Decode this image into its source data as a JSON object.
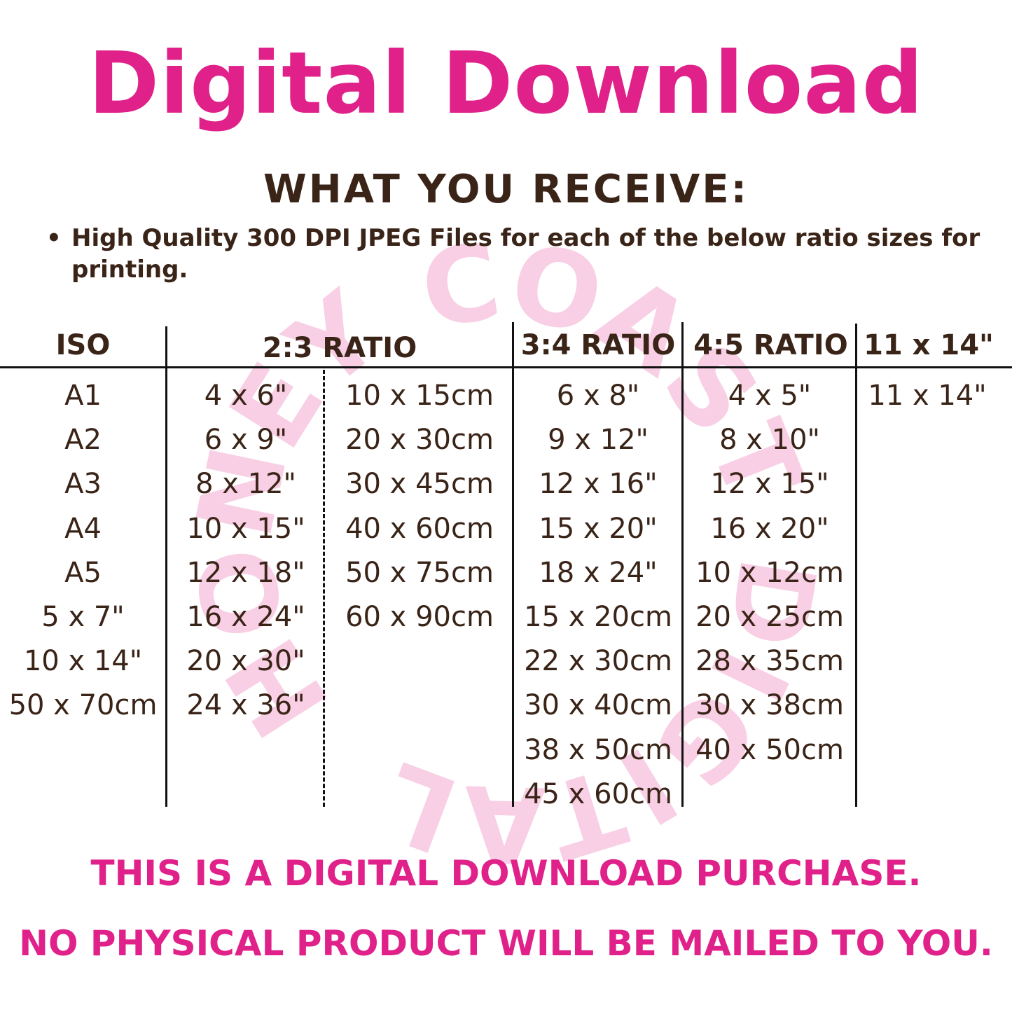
{
  "title": "Digital Download",
  "subtitle": "WHAT YOU RECEIVE:",
  "bullet": "High Quality 300 DPI JPEG Files for each of the below ratio sizes for printing.",
  "watermark": "HONEY COAST DIGITAL",
  "colors": {
    "accent": "#e0218a",
    "text": "#3a2418",
    "watermark": "#f8cfe4"
  },
  "table": {
    "headers": {
      "iso": "ISO",
      "r23": "2:3 RATIO",
      "r34": "3:4 RATIO",
      "r45": "4:5 RATIO",
      "r1114": "11 x 14\""
    },
    "iso": [
      "A1",
      "A2",
      "A3",
      "A4",
      "A5",
      "5 x 7\"",
      "10 x 14\"",
      "50 x 70cm"
    ],
    "r23_in": [
      "4 x 6\"",
      "6 x 9\"",
      "8 x 12\"",
      "10 x 15\"",
      "12 x 18\"",
      "16 x 24\"",
      "20 x 30\"",
      "24 x 36\""
    ],
    "r23_cm": [
      "10 x 15cm",
      "20 x 30cm",
      "30 x 45cm",
      "40 x 60cm",
      "50 x 75cm",
      "60 x 90cm"
    ],
    "r34": [
      "6 x 8\"",
      "9 x 12\"",
      "12 x 16\"",
      "15 x 20\"",
      "18 x 24\"",
      "15 x 20cm",
      "22 x 30cm",
      "30 x 40cm",
      "38 x 50cm",
      "45 x 60cm"
    ],
    "r45": [
      "4 x 5\"",
      "8 x 10\"",
      "12 x 15\"",
      "16 x 20\"",
      "10 x 12cm",
      "20 x 25cm",
      "28 x 35cm",
      "30 x 38cm",
      "40 x 50cm"
    ],
    "r1114": [
      "11 x 14\""
    ]
  },
  "footer": {
    "line1": "THIS IS A DIGITAL DOWNLOAD PURCHASE.",
    "line2": "NO PHYSICAL PRODUCT WILL BE MAILED TO YOU."
  }
}
